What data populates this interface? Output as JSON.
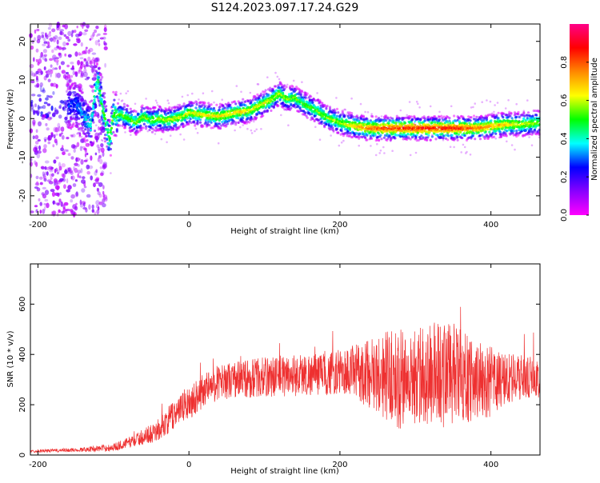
{
  "title": "S124.2023.097.17.24.G29",
  "chart_data": [
    {
      "type": "heatmap",
      "xlabel": "Height of straight line (km)",
      "ylabel": "Frequency (Hz)",
      "xlim": [
        -210,
        465
      ],
      "ylim": [
        -25,
        24.5
      ],
      "xticks": [
        -200,
        0,
        200,
        400
      ],
      "yticks": [
        -20,
        -10,
        0,
        10,
        20
      ],
      "grid": false,
      "colorbar": {
        "label": "Normalized spectral amplitude",
        "range": [
          0,
          1
        ],
        "ticks": [
          0.0,
          0.2,
          0.4,
          0.6,
          0.8
        ],
        "tick_labels": [
          "0.0",
          "0.2",
          "0.4",
          "0.6",
          "0.8"
        ],
        "colormap": [
          "#ff00ff",
          "#8800ff",
          "#0000ff",
          "#00ffff",
          "#00ff00",
          "#ffff00",
          "#ff8800",
          "#ff0000",
          "#ff0088"
        ]
      },
      "ridge_center": {
        "x": [
          -210,
          -190,
          -170,
          -150,
          -140,
          -130,
          -125,
          -120,
          -115,
          -110,
          -105,
          -100,
          -90,
          -80,
          -70,
          -60,
          -50,
          -40,
          -30,
          -20,
          -10,
          0,
          20,
          40,
          60,
          80,
          100,
          110,
          120,
          130,
          140,
          150,
          160,
          170,
          180,
          200,
          220,
          240,
          260,
          280,
          300,
          320,
          340,
          360,
          380,
          400,
          420,
          440,
          465
        ],
        "y": [
          3,
          5,
          2,
          4,
          1,
          -2,
          6,
          10,
          3,
          -1,
          -6,
          1,
          1,
          0,
          -1,
          0.5,
          -0.5,
          0,
          -0.5,
          0,
          0.5,
          1.5,
          1,
          0.5,
          1.5,
          2,
          4,
          5,
          6.5,
          5,
          5.5,
          4,
          3,
          2,
          0.5,
          -1,
          -2,
          -2.5,
          -2.5,
          -2.5,
          -2.5,
          -2.5,
          -2.5,
          -2.5,
          -2.5,
          -2,
          -1.5,
          -1.5,
          -1
        ]
      },
      "ridge_amplitude": {
        "x": [
          -210,
          -150,
          -120,
          -100,
          -50,
          0,
          50,
          100,
          150,
          200,
          250,
          300,
          350,
          400,
          465
        ],
        "value": [
          0.1,
          0.25,
          0.45,
          0.5,
          0.55,
          0.6,
          0.65,
          0.6,
          0.5,
          0.55,
          0.8,
          0.85,
          0.85,
          0.7,
          0.55
        ]
      }
    },
    {
      "type": "line",
      "xlabel": "Height of straight line (km)",
      "ylabel": "SNR (10 * v/v)",
      "xlim": [
        -210,
        465
      ],
      "ylim": [
        0,
        760
      ],
      "xticks": [
        -200,
        0,
        200,
        400
      ],
      "yticks": [
        0,
        200,
        400,
        600
      ],
      "grid": false,
      "series": [
        {
          "color": "#ee3030",
          "envelope_x": [
            -210,
            -150,
            -100,
            -70,
            -40,
            -20,
            0,
            20,
            40,
            60,
            80,
            100,
            120,
            150,
            180,
            200,
            220,
            240,
            260,
            280,
            300,
            320,
            340,
            360,
            380,
            400,
            420,
            440,
            465
          ],
          "mean": [
            15,
            20,
            30,
            60,
            100,
            160,
            210,
            260,
            290,
            300,
            305,
            310,
            315,
            320,
            320,
            330,
            330,
            325,
            320,
            300,
            310,
            320,
            330,
            310,
            300,
            290,
            300,
            310,
            300
          ],
          "spread": [
            5,
            8,
            15,
            25,
            45,
            60,
            70,
            70,
            70,
            75,
            80,
            80,
            85,
            85,
            85,
            90,
            110,
            140,
            180,
            200,
            200,
            210,
            220,
            190,
            160,
            140,
            110,
            90,
            80
          ]
        }
      ]
    }
  ]
}
